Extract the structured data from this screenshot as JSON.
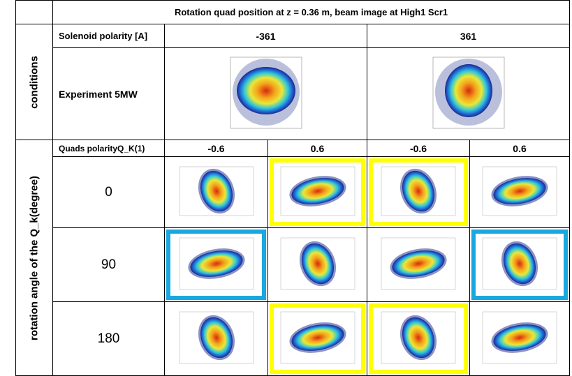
{
  "table": {
    "title": "Rotation quad position at z = 0.36 m, beam image at High1 Scr1",
    "section_labels": [
      "conditions",
      "rotation angle of the Q_k(degree)"
    ],
    "solenoid": {
      "label": "Solenoid polarity [A]",
      "values": [
        "-361",
        "361"
      ]
    },
    "experiment": {
      "label": "Experiment 5MW"
    },
    "quads": {
      "label": "Quads polarityQ_K(1)",
      "values": [
        "-0.6",
        "0.6",
        "-0.6",
        "0.6"
      ]
    },
    "rows": [
      {
        "angle": "0",
        "highlights": [
          null,
          "#ffff00",
          "#ffff00",
          null
        ]
      },
      {
        "angle": "90",
        "highlights": [
          "#1aa7e0",
          null,
          null,
          "#1aa7e0"
        ]
      },
      {
        "angle": "180",
        "highlights": [
          null,
          "#ffff00",
          "#ffff00",
          null
        ]
      }
    ]
  }
}
